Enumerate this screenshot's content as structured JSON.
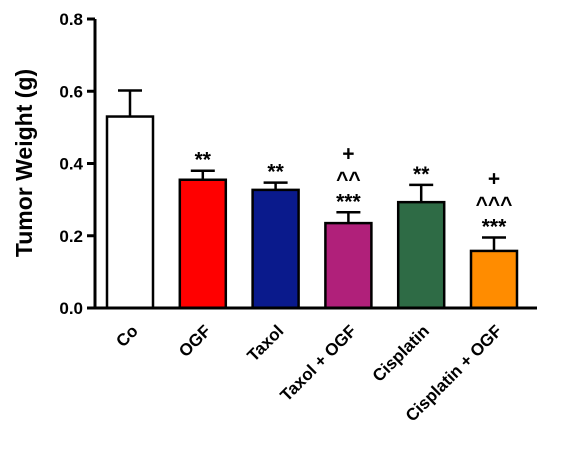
{
  "chart_data": {
    "type": "bar",
    "title": "",
    "xlabel": "",
    "ylabel": "Tumor Weight (g)",
    "ylim": [
      0,
      0.8
    ],
    "yticks": [
      "0.0",
      "0.2",
      "0.4",
      "0.6",
      "0.8"
    ],
    "grid": false,
    "categories": [
      "Co",
      "OGF",
      "Taxol",
      "Taxol + OGF",
      "Cisplatin",
      "Cisplatin + OGF"
    ],
    "values": [
      0.53,
      0.355,
      0.327,
      0.235,
      0.293,
      0.158
    ],
    "errors": [
      0.072,
      0.025,
      0.02,
      0.03,
      0.048,
      0.037
    ],
    "colors": [
      "#ffffff",
      "#ff0000",
      "#0a1a8c",
      "#b0207a",
      "#2e6b45",
      "#ff8c00"
    ],
    "annotations": [
      [],
      [
        "**"
      ],
      [
        "**"
      ],
      [
        "***",
        "^^",
        "+"
      ],
      [
        "**"
      ],
      [
        "***",
        "^^^",
        "+"
      ]
    ]
  }
}
